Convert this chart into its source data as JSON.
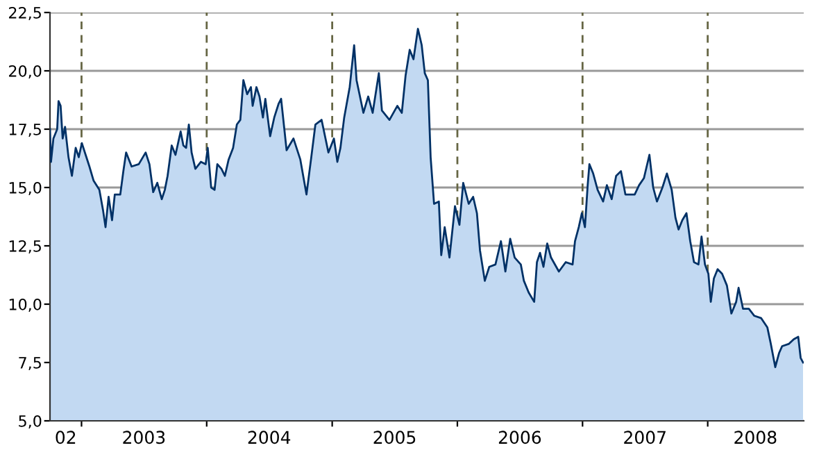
{
  "chart_data": {
    "type": "area",
    "x": [
      "2002-10-01",
      "2002-10-04",
      "2002-10-11",
      "2002-10-22",
      "2002-10-26",
      "2002-11-01",
      "2002-11-07",
      "2002-11-14",
      "2002-11-24",
      "2002-12-04",
      "2002-12-15",
      "2002-12-24",
      "2003-01-02",
      "2003-01-13",
      "2003-01-24",
      "2003-02-05",
      "2003-02-22",
      "2003-03-05",
      "2003-03-12",
      "2003-03-21",
      "2003-03-31",
      "2003-04-08",
      "2003-04-24",
      "2003-05-03",
      "2003-05-11",
      "2003-05-27",
      "2003-06-17",
      "2003-07-07",
      "2003-07-18",
      "2003-07-29",
      "2003-08-10",
      "2003-08-23",
      "2003-09-01",
      "2003-09-09",
      "2003-09-21",
      "2003-10-02",
      "2003-10-17",
      "2003-10-25",
      "2003-11-02",
      "2003-11-10",
      "2003-11-18",
      "2003-11-29",
      "2003-12-15",
      "2003-12-29",
      "2004-01-04",
      "2004-01-14",
      "2004-01-24",
      "2004-02-01",
      "2004-02-13",
      "2004-02-23",
      "2004-03-05",
      "2004-03-18",
      "2004-03-29",
      "2004-04-08",
      "2004-04-17",
      "2004-04-28",
      "2004-05-09",
      "2004-05-14",
      "2004-05-25",
      "2004-06-03",
      "2004-06-13",
      "2004-06-20",
      "2004-07-04",
      "2004-07-16",
      "2004-07-29",
      "2004-08-05",
      "2004-08-21",
      "2004-09-10",
      "2004-09-30",
      "2004-10-18",
      "2004-11-01",
      "2004-11-13",
      "2004-12-01",
      "2004-12-21",
      "2005-01-06",
      "2005-01-16",
      "2005-01-25",
      "2005-02-05",
      "2005-02-21",
      "2005-03-06",
      "2005-03-13",
      "2005-04-02",
      "2005-04-16",
      "2005-04-29",
      "2005-05-17",
      "2005-05-26",
      "2005-06-17",
      "2005-07-10",
      "2005-07-23",
      "2005-08-03",
      "2005-08-15",
      "2005-08-26",
      "2005-09-08",
      "2005-09-19",
      "2005-09-28",
      "2005-10-07",
      "2005-10-15",
      "2005-10-25",
      "2005-11-08",
      "2005-11-15",
      "2005-11-25",
      "2005-12-09",
      "2005-12-25",
      "2006-01-07",
      "2006-01-18",
      "2006-02-03",
      "2006-02-16",
      "2006-02-27",
      "2006-03-08",
      "2006-03-22",
      "2006-04-04",
      "2006-04-22",
      "2006-05-08",
      "2006-05-21",
      "2006-06-04",
      "2006-06-17",
      "2006-07-05",
      "2006-07-14",
      "2006-07-28",
      "2006-08-13",
      "2006-08-21",
      "2006-08-30",
      "2006-09-09",
      "2006-09-20",
      "2006-10-01",
      "2006-10-24",
      "2006-11-13",
      "2006-12-03",
      "2006-12-10",
      "2006-12-21",
      "2006-12-30",
      "2007-01-08",
      "2007-01-16",
      "2007-01-21",
      "2007-02-01",
      "2007-02-14",
      "2007-03-02",
      "2007-03-13",
      "2007-03-27",
      "2007-04-09",
      "2007-04-23",
      "2007-05-06",
      "2007-06-02",
      "2007-06-15",
      "2007-06-29",
      "2007-07-15",
      "2007-07-26",
      "2007-08-06",
      "2007-08-22",
      "2007-09-04",
      "2007-09-18",
      "2007-09-29",
      "2007-10-08",
      "2007-10-19",
      "2007-10-31",
      "2007-11-11",
      "2007-11-22",
      "2007-12-05",
      "2007-12-14",
      "2007-12-24",
      "2008-01-03",
      "2008-01-10",
      "2008-01-19",
      "2008-01-30",
      "2008-02-12",
      "2008-02-26",
      "2008-03-10",
      "2008-03-24",
      "2008-03-31",
      "2008-04-13",
      "2008-04-30",
      "2008-05-16",
      "2008-06-05",
      "2008-06-23",
      "2008-07-03",
      "2008-07-16",
      "2008-07-27",
      "2008-08-05",
      "2008-08-25",
      "2008-09-08",
      "2008-09-21",
      "2008-09-28",
      "2008-10-05"
    ],
    "series": [
      {
        "color": "#c2d9f2",
        "values": [
          17.5,
          16.1,
          17.1,
          17.5,
          18.7,
          18.5,
          17.1,
          17.6,
          16.3,
          15.5,
          16.7,
          16.3,
          16.9,
          16.4,
          15.9,
          15.3,
          14.9,
          14.0,
          13.3,
          14.6,
          13.6,
          14.7,
          14.7,
          15.7,
          16.5,
          15.9,
          16.0,
          16.5,
          16.0,
          14.8,
          15.2,
          14.5,
          14.9,
          15.5,
          16.8,
          16.4,
          17.4,
          16.8,
          16.7,
          17.7,
          16.5,
          15.8,
          16.1,
          16.0,
          16.7,
          15.0,
          14.9,
          16.0,
          15.8,
          15.5,
          16.2,
          16.7,
          17.7,
          17.9,
          19.6,
          19.0,
          19.3,
          18.5,
          19.3,
          18.9,
          18.0,
          18.8,
          17.2,
          18.0,
          18.6,
          18.8,
          16.6,
          17.1,
          16.2,
          14.7,
          16.3,
          17.7,
          17.9,
          16.5,
          17.1,
          16.1,
          16.7,
          18.0,
          19.3,
          21.1,
          19.6,
          18.2,
          18.9,
          18.2,
          19.9,
          18.3,
          17.9,
          18.5,
          18.2,
          19.8,
          20.9,
          20.5,
          21.8,
          21.1,
          19.9,
          19.6,
          16.3,
          14.3,
          14.4,
          12.1,
          13.3,
          12.0,
          14.2,
          13.4,
          15.2,
          14.3,
          14.6,
          13.9,
          12.3,
          11.0,
          11.6,
          11.7,
          12.7,
          11.4,
          12.8,
          12.0,
          11.7,
          11.0,
          10.5,
          10.1,
          11.8,
          12.2,
          11.6,
          12.6,
          12.0,
          11.4,
          11.8,
          11.7,
          12.7,
          13.3,
          13.9,
          13.3,
          15.1,
          16.0,
          15.6,
          14.9,
          14.4,
          15.1,
          14.5,
          15.5,
          15.7,
          14.7,
          14.7,
          15.1,
          15.4,
          16.4,
          15.0,
          14.4,
          15.0,
          15.6,
          14.9,
          13.7,
          13.2,
          13.6,
          13.9,
          12.7,
          11.8,
          11.7,
          12.9,
          11.7,
          11.3,
          10.1,
          11.1,
          11.5,
          11.3,
          10.8,
          9.6,
          10.1,
          10.7,
          9.8,
          9.8,
          9.5,
          9.4,
          9.0,
          8.3,
          7.3,
          7.9,
          8.2,
          8.3,
          8.5,
          8.6,
          7.7,
          7.5
        ]
      }
    ],
    "xlim": [
      "2002-10-01",
      "2008-10-07"
    ],
    "xticks": [
      {
        "value": "2003-01-01",
        "label": null
      },
      {
        "value": "2004-01-01",
        "label": null
      },
      {
        "value": "2005-01-01",
        "label": null
      },
      {
        "value": "2006-01-01",
        "label": null
      },
      {
        "value": "2007-01-01",
        "label": null
      },
      {
        "value": "2008-01-01",
        "label": null
      },
      {
        "value": "2002-11-16",
        "label": "02"
      },
      {
        "value": "2003-07-02",
        "label": "2003"
      },
      {
        "value": "2004-07-01",
        "label": "2004"
      },
      {
        "value": "2005-07-02",
        "label": "2005"
      },
      {
        "value": "2006-07-02",
        "label": "2006"
      },
      {
        "value": "2007-07-02",
        "label": "2007"
      },
      {
        "value": "2008-05-19",
        "label": "2008"
      }
    ],
    "ylim": [
      5,
      22.5
    ],
    "yticks": [
      {
        "value": 5,
        "label": "5,0"
      },
      {
        "value": 7.5,
        "label": "7,5"
      },
      {
        "value": 10,
        "label": "10,0"
      },
      {
        "value": 12.5,
        "label": "12,5"
      },
      {
        "value": 15,
        "label": "15,0"
      },
      {
        "value": 17.5,
        "label": "17,5"
      },
      {
        "value": 20,
        "label": "20,0"
      },
      {
        "value": 22.5,
        "label": "22,5"
      }
    ],
    "grid": "y",
    "ref_lines": [
      {
        "axis": "x",
        "value": "2003-01-01",
        "color": "#666644",
        "line_style": "dashed"
      },
      {
        "axis": "x",
        "value": "2004-01-01",
        "color": "#666644",
        "line_style": "dashed"
      },
      {
        "axis": "x",
        "value": "2005-01-01",
        "color": "#666644",
        "line_style": "dashed"
      },
      {
        "axis": "x",
        "value": "2006-01-01",
        "color": "#666644",
        "line_style": "dashed"
      },
      {
        "axis": "x",
        "value": "2007-01-01",
        "color": "#666644",
        "line_style": "dashed"
      },
      {
        "axis": "x",
        "value": "2008-01-01",
        "color": "#666644",
        "line_style": "dashed"
      }
    ]
  }
}
